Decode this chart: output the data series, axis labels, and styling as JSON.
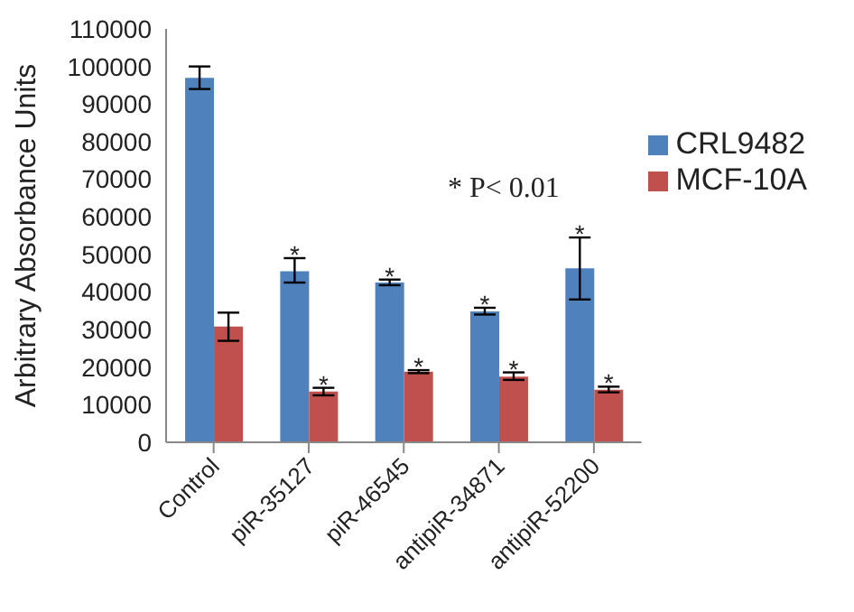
{
  "chart_data": {
    "type": "bar",
    "ylabel": "Arbitrary Absorbance Units",
    "categories": [
      "Control",
      "piR-35127",
      "piR-46545",
      "antipiR-34871",
      "antipiR-52200"
    ],
    "series": [
      {
        "name": "CRL9482",
        "color": "#4f81bd",
        "values": [
          97000,
          45500,
          42500,
          34800,
          46300
        ],
        "errors": [
          [
            94000,
            100000
          ],
          [
            42500,
            49000
          ],
          [
            41800,
            43300
          ],
          [
            34000,
            35800
          ],
          [
            38000,
            54500
          ]
        ]
      },
      {
        "name": "MCF-10A",
        "color": "#c0504d",
        "values": [
          30800,
          13500,
          18800,
          17500,
          14000
        ],
        "errors": [
          [
            27000,
            34500
          ],
          [
            12500,
            14500
          ],
          [
            18400,
            19200
          ],
          [
            16600,
            18600
          ],
          [
            13300,
            14800
          ]
        ]
      }
    ],
    "ylim": [
      0,
      110000
    ],
    "yticks": [
      0,
      10000,
      20000,
      30000,
      40000,
      50000,
      60000,
      70000,
      80000,
      90000,
      100000,
      110000
    ],
    "grid": false,
    "legend": "right",
    "annotations": [
      "* P< 0.01",
      {
        "text": "*",
        "x": "piR-35127",
        "y": 49000
      },
      {
        "text": "*",
        "x": "piR-35127",
        "y": 14500
      },
      {
        "text": "*",
        "x": "piR-46545",
        "y": 43300
      },
      {
        "text": "*",
        "x": "piR-46545",
        "y": 19200
      },
      {
        "text": "*",
        "x": "antipiR-34871",
        "y": 35800
      },
      {
        "text": "*",
        "x": "antipiR-34871",
        "y": 18600
      },
      {
        "text": "*",
        "x": "antipiR-52200",
        "y": 54500
      },
      {
        "text": "*",
        "x": "antipiR-52200",
        "y": 14800
      }
    ]
  }
}
